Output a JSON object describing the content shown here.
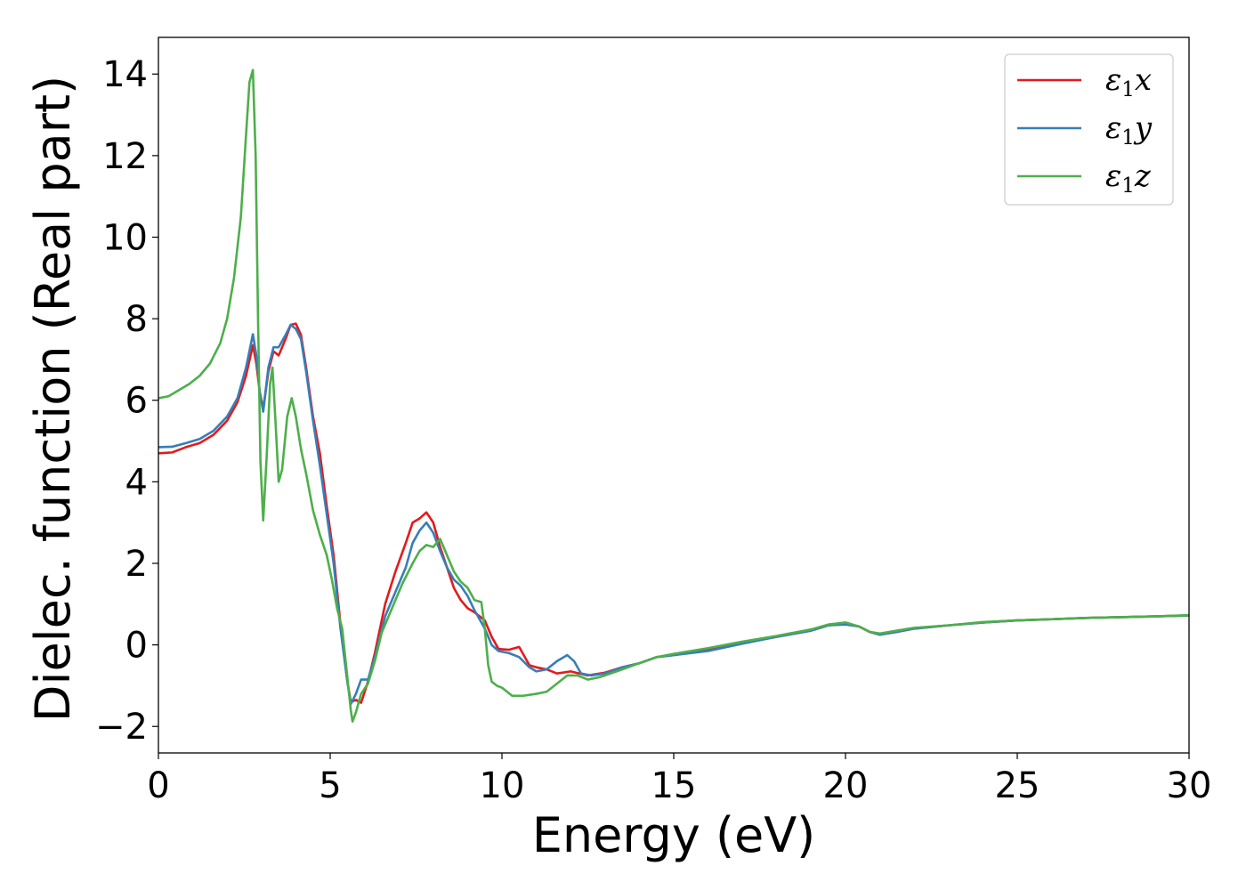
{
  "chart_data": {
    "type": "line",
    "title": "",
    "xlabel": "Energy (eV)",
    "ylabel": "Dielec. function (Real part)",
    "xlim": [
      0,
      30
    ],
    "ylim": [
      -2.65,
      14.9
    ],
    "xticks": [
      0,
      5,
      10,
      15,
      20,
      25,
      30
    ],
    "yticks": [
      -2,
      0,
      2,
      4,
      6,
      8,
      10,
      12,
      14
    ],
    "grid": false,
    "legend_position": "top-right",
    "series": [
      {
        "name": "ε1x",
        "legend_base": "ε",
        "legend_sub": "1",
        "legend_var": "x",
        "color": "#e41a1c",
        "points": [
          [
            0,
            4.7
          ],
          [
            0.4,
            4.72
          ],
          [
            0.8,
            4.85
          ],
          [
            1.2,
            4.95
          ],
          [
            1.6,
            5.15
          ],
          [
            2.0,
            5.5
          ],
          [
            2.3,
            5.95
          ],
          [
            2.55,
            6.6
          ],
          [
            2.75,
            7.35
          ],
          [
            2.85,
            6.9
          ],
          [
            2.95,
            6.2
          ],
          [
            3.05,
            5.78
          ],
          [
            3.2,
            6.7
          ],
          [
            3.35,
            7.2
          ],
          [
            3.5,
            7.1
          ],
          [
            3.7,
            7.5
          ],
          [
            3.85,
            7.85
          ],
          [
            4.0,
            7.88
          ],
          [
            4.15,
            7.6
          ],
          [
            4.3,
            6.8
          ],
          [
            4.5,
            5.6
          ],
          [
            4.7,
            4.7
          ],
          [
            4.9,
            3.4
          ],
          [
            5.1,
            2.2
          ],
          [
            5.3,
            0.5
          ],
          [
            5.5,
            -0.9
          ],
          [
            5.6,
            -1.4
          ],
          [
            5.75,
            -1.35
          ],
          [
            5.9,
            -1.42
          ],
          [
            6.1,
            -0.9
          ],
          [
            6.3,
            -0.2
          ],
          [
            6.6,
            1.0
          ],
          [
            6.9,
            1.8
          ],
          [
            7.2,
            2.5
          ],
          [
            7.4,
            3.0
          ],
          [
            7.6,
            3.1
          ],
          [
            7.8,
            3.25
          ],
          [
            8.0,
            3.0
          ],
          [
            8.2,
            2.4
          ],
          [
            8.4,
            1.9
          ],
          [
            8.6,
            1.4
          ],
          [
            8.8,
            1.1
          ],
          [
            9.0,
            0.9
          ],
          [
            9.2,
            0.8
          ],
          [
            9.5,
            0.6
          ],
          [
            9.7,
            0.2
          ],
          [
            9.9,
            -0.1
          ],
          [
            10.2,
            -0.12
          ],
          [
            10.5,
            -0.05
          ],
          [
            10.8,
            -0.5
          ],
          [
            11.0,
            -0.55
          ],
          [
            11.3,
            -0.6
          ],
          [
            11.6,
            -0.7
          ],
          [
            12.0,
            -0.65
          ],
          [
            12.5,
            -0.75
          ],
          [
            13.0,
            -0.68
          ],
          [
            13.5,
            -0.55
          ],
          [
            14.0,
            -0.45
          ],
          [
            14.5,
            -0.3
          ],
          [
            15.0,
            -0.25
          ],
          [
            16.0,
            -0.12
          ],
          [
            17.0,
            0.05
          ],
          [
            18.0,
            0.2
          ],
          [
            19.0,
            0.35
          ],
          [
            19.5,
            0.48
          ],
          [
            20.0,
            0.52
          ],
          [
            20.4,
            0.45
          ],
          [
            20.7,
            0.32
          ],
          [
            21.0,
            0.25
          ],
          [
            21.5,
            0.32
          ],
          [
            22.0,
            0.4
          ],
          [
            23.0,
            0.48
          ],
          [
            24.0,
            0.55
          ],
          [
            25.0,
            0.6
          ],
          [
            26.0,
            0.63
          ],
          [
            27.0,
            0.66
          ],
          [
            28.0,
            0.68
          ],
          [
            29.0,
            0.7
          ],
          [
            30.0,
            0.72
          ]
        ]
      },
      {
        "name": "ε1y",
        "legend_base": "ε",
        "legend_sub": "1",
        "legend_var": "y",
        "color": "#377eb8",
        "points": [
          [
            0,
            4.85
          ],
          [
            0.4,
            4.86
          ],
          [
            0.8,
            4.95
          ],
          [
            1.2,
            5.05
          ],
          [
            1.6,
            5.25
          ],
          [
            2.0,
            5.6
          ],
          [
            2.3,
            6.05
          ],
          [
            2.55,
            6.8
          ],
          [
            2.75,
            7.62
          ],
          [
            2.85,
            7.1
          ],
          [
            2.95,
            6.2
          ],
          [
            3.05,
            5.72
          ],
          [
            3.2,
            6.8
          ],
          [
            3.35,
            7.3
          ],
          [
            3.5,
            7.3
          ],
          [
            3.7,
            7.6
          ],
          [
            3.85,
            7.85
          ],
          [
            4.0,
            7.75
          ],
          [
            4.15,
            7.5
          ],
          [
            4.3,
            6.7
          ],
          [
            4.5,
            5.5
          ],
          [
            4.7,
            4.4
          ],
          [
            4.9,
            3.2
          ],
          [
            5.1,
            2.0
          ],
          [
            5.3,
            0.4
          ],
          [
            5.5,
            -0.9
          ],
          [
            5.6,
            -1.45
          ],
          [
            5.75,
            -1.2
          ],
          [
            5.9,
            -0.85
          ],
          [
            6.1,
            -0.85
          ],
          [
            6.3,
            -0.3
          ],
          [
            6.6,
            0.7
          ],
          [
            6.9,
            1.3
          ],
          [
            7.2,
            1.9
          ],
          [
            7.4,
            2.5
          ],
          [
            7.6,
            2.8
          ],
          [
            7.8,
            3.0
          ],
          [
            8.0,
            2.75
          ],
          [
            8.2,
            2.3
          ],
          [
            8.4,
            1.9
          ],
          [
            8.6,
            1.6
          ],
          [
            8.8,
            1.45
          ],
          [
            9.0,
            1.2
          ],
          [
            9.2,
            0.85
          ],
          [
            9.5,
            0.4
          ],
          [
            9.7,
            0.0
          ],
          [
            9.9,
            -0.15
          ],
          [
            10.2,
            -0.2
          ],
          [
            10.5,
            -0.3
          ],
          [
            10.8,
            -0.55
          ],
          [
            11.0,
            -0.65
          ],
          [
            11.3,
            -0.6
          ],
          [
            11.6,
            -0.4
          ],
          [
            11.9,
            -0.25
          ],
          [
            12.1,
            -0.4
          ],
          [
            12.3,
            -0.7
          ],
          [
            12.6,
            -0.75
          ],
          [
            13.0,
            -0.7
          ],
          [
            13.5,
            -0.55
          ],
          [
            14.0,
            -0.45
          ],
          [
            14.5,
            -0.3
          ],
          [
            15.0,
            -0.25
          ],
          [
            16.0,
            -0.15
          ],
          [
            17.0,
            0.03
          ],
          [
            18.0,
            0.2
          ],
          [
            19.0,
            0.35
          ],
          [
            19.5,
            0.48
          ],
          [
            20.0,
            0.5
          ],
          [
            20.4,
            0.45
          ],
          [
            20.7,
            0.32
          ],
          [
            21.0,
            0.25
          ],
          [
            21.5,
            0.32
          ],
          [
            22.0,
            0.4
          ],
          [
            23.0,
            0.48
          ],
          [
            24.0,
            0.55
          ],
          [
            25.0,
            0.6
          ],
          [
            26.0,
            0.63
          ],
          [
            27.0,
            0.66
          ],
          [
            28.0,
            0.68
          ],
          [
            29.0,
            0.7
          ],
          [
            30.0,
            0.72
          ]
        ]
      },
      {
        "name": "ε1z",
        "legend_base": "ε",
        "legend_sub": "1",
        "legend_var": "z",
        "color": "#4daf4a",
        "points": [
          [
            0,
            6.05
          ],
          [
            0.3,
            6.1
          ],
          [
            0.6,
            6.25
          ],
          [
            0.9,
            6.4
          ],
          [
            1.2,
            6.6
          ],
          [
            1.5,
            6.9
          ],
          [
            1.8,
            7.4
          ],
          [
            2.0,
            8.0
          ],
          [
            2.2,
            9.0
          ],
          [
            2.4,
            10.5
          ],
          [
            2.55,
            12.5
          ],
          [
            2.65,
            13.8
          ],
          [
            2.75,
            14.1
          ],
          [
            2.83,
            12.0
          ],
          [
            2.9,
            8.0
          ],
          [
            2.97,
            4.5
          ],
          [
            3.05,
            3.05
          ],
          [
            3.15,
            4.6
          ],
          [
            3.25,
            6.4
          ],
          [
            3.32,
            6.8
          ],
          [
            3.4,
            5.6
          ],
          [
            3.5,
            4.0
          ],
          [
            3.6,
            4.3
          ],
          [
            3.75,
            5.6
          ],
          [
            3.88,
            6.05
          ],
          [
            4.0,
            5.6
          ],
          [
            4.15,
            4.8
          ],
          [
            4.3,
            4.2
          ],
          [
            4.5,
            3.3
          ],
          [
            4.7,
            2.7
          ],
          [
            4.9,
            2.2
          ],
          [
            5.05,
            1.6
          ],
          [
            5.2,
            0.9
          ],
          [
            5.35,
            0.4
          ],
          [
            5.5,
            -0.8
          ],
          [
            5.6,
            -1.6
          ],
          [
            5.65,
            -1.88
          ],
          [
            5.75,
            -1.65
          ],
          [
            5.9,
            -1.2
          ],
          [
            6.1,
            -0.95
          ],
          [
            6.3,
            -0.4
          ],
          [
            6.5,
            0.3
          ],
          [
            6.8,
            0.9
          ],
          [
            7.1,
            1.5
          ],
          [
            7.4,
            2.0
          ],
          [
            7.6,
            2.3
          ],
          [
            7.8,
            2.45
          ],
          [
            8.0,
            2.4
          ],
          [
            8.2,
            2.6
          ],
          [
            8.4,
            2.2
          ],
          [
            8.6,
            1.8
          ],
          [
            8.8,
            1.55
          ],
          [
            9.0,
            1.4
          ],
          [
            9.2,
            1.1
          ],
          [
            9.4,
            1.05
          ],
          [
            9.5,
            0.4
          ],
          [
            9.6,
            -0.5
          ],
          [
            9.7,
            -0.9
          ],
          [
            9.85,
            -1.0
          ],
          [
            10.0,
            -1.05
          ],
          [
            10.3,
            -1.25
          ],
          [
            10.6,
            -1.25
          ],
          [
            11.0,
            -1.2
          ],
          [
            11.3,
            -1.15
          ],
          [
            11.6,
            -0.95
          ],
          [
            11.9,
            -0.75
          ],
          [
            12.2,
            -0.75
          ],
          [
            12.5,
            -0.85
          ],
          [
            12.8,
            -0.8
          ],
          [
            13.0,
            -0.75
          ],
          [
            13.5,
            -0.6
          ],
          [
            14.0,
            -0.45
          ],
          [
            14.5,
            -0.3
          ],
          [
            15.0,
            -0.22
          ],
          [
            16.0,
            -0.08
          ],
          [
            17.0,
            0.08
          ],
          [
            18.0,
            0.22
          ],
          [
            19.0,
            0.38
          ],
          [
            19.5,
            0.5
          ],
          [
            20.0,
            0.55
          ],
          [
            20.4,
            0.45
          ],
          [
            20.7,
            0.32
          ],
          [
            21.0,
            0.28
          ],
          [
            21.5,
            0.35
          ],
          [
            22.0,
            0.42
          ],
          [
            23.0,
            0.48
          ],
          [
            24.0,
            0.56
          ],
          [
            25.0,
            0.6
          ],
          [
            26.0,
            0.63
          ],
          [
            27.0,
            0.66
          ],
          [
            28.0,
            0.68
          ],
          [
            29.0,
            0.7
          ],
          [
            30.0,
            0.73
          ]
        ]
      }
    ]
  }
}
